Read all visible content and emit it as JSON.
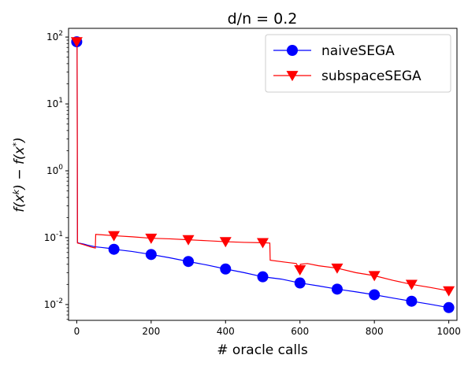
{
  "chart_data": {
    "type": "line",
    "title": "d/n = 0.2",
    "xlabel": "# oracle calls",
    "ylabel": "f(x^k) − f(x*)",
    "xlim": [
      -22,
      1022
    ],
    "ylim": [
      0.0058,
      135
    ],
    "yscale": "log",
    "grid": false,
    "legend_position": "top-right",
    "xticks": [
      0,
      200,
      400,
      600,
      800,
      1000
    ],
    "xtick_labels": [
      "0",
      "200",
      "400",
      "600",
      "800",
      "1000"
    ],
    "yticks": [
      0.01,
      0.1,
      1,
      10,
      100
    ],
    "ytick_labels": [
      "10^-2",
      "10^-1",
      "10^0",
      "10^1",
      "10^2"
    ],
    "series": [
      {
        "name": "naiveSEGA",
        "color": "#0000ff",
        "marker": "circle",
        "line_x": [
          0,
          1,
          2,
          5,
          10,
          20,
          30,
          40,
          50,
          60,
          70,
          80,
          90,
          100,
          150,
          200,
          250,
          300,
          350,
          400,
          450,
          500,
          550,
          600,
          650,
          700,
          750,
          800,
          850,
          900,
          950,
          1000
        ],
        "line_y": [
          85,
          85,
          0.085,
          0.083,
          0.082,
          0.08,
          0.077,
          0.075,
          0.073,
          0.072,
          0.071,
          0.07,
          0.069,
          0.067,
          0.062,
          0.056,
          0.05,
          0.044,
          0.039,
          0.034,
          0.03,
          0.026,
          0.024,
          0.021,
          0.019,
          0.017,
          0.0155,
          0.014,
          0.0125,
          0.0112,
          0.0101,
          0.009
        ],
        "marker_x": [
          0,
          100,
          200,
          300,
          400,
          500,
          600,
          700,
          800,
          900,
          1000
        ],
        "marker_y": [
          85,
          0.067,
          0.056,
          0.044,
          0.034,
          0.026,
          0.021,
          0.017,
          0.014,
          0.0112,
          0.009
        ]
      },
      {
        "name": "subspaceSEGA",
        "color": "#ff0000",
        "marker": "triangle-down",
        "line_x": [
          0,
          1,
          2,
          10,
          20,
          30,
          40,
          50,
          51,
          100,
          150,
          200,
          250,
          300,
          350,
          400,
          450,
          500,
          519,
          520,
          560,
          590,
          600,
          601,
          620,
          650,
          700,
          750,
          800,
          850,
          900,
          950,
          1000
        ],
        "line_y": [
          85,
          85,
          0.083,
          0.081,
          0.078,
          0.075,
          0.072,
          0.07,
          0.112,
          0.107,
          0.103,
          0.098,
          0.096,
          0.093,
          0.09,
          0.087,
          0.085,
          0.084,
          0.083,
          0.046,
          0.043,
          0.041,
          0.033,
          0.04,
          0.041,
          0.038,
          0.035,
          0.03,
          0.027,
          0.023,
          0.02,
          0.018,
          0.016
        ],
        "marker_x": [
          0,
          100,
          200,
          300,
          400,
          500,
          600,
          700,
          800,
          900,
          1000
        ],
        "marker_y": [
          85,
          0.107,
          0.098,
          0.093,
          0.087,
          0.084,
          0.033,
          0.035,
          0.027,
          0.02,
          0.016
        ]
      }
    ]
  }
}
